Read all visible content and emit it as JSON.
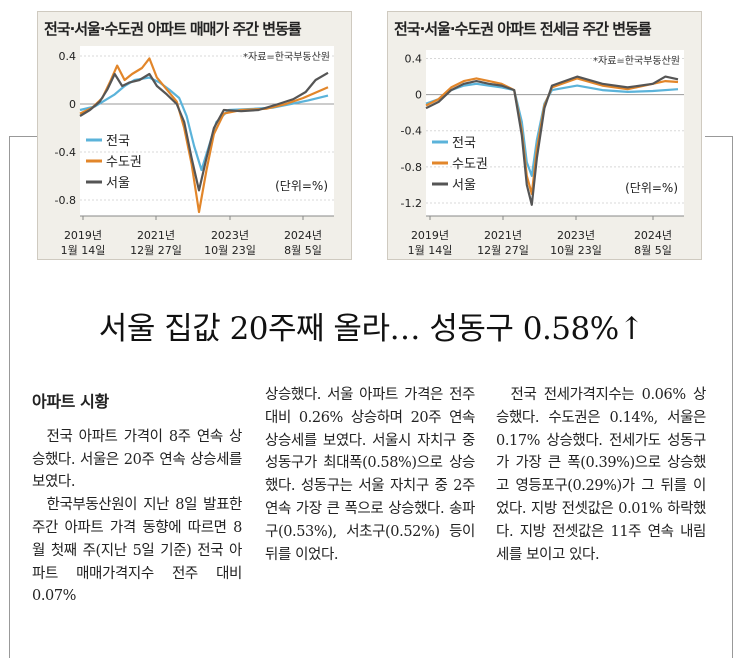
{
  "charts": [
    {
      "title": "전국·서울·수도권 아파트 매매가 주간 변동률",
      "source": "*자료=한국부동산원",
      "unit": "(단위=%)",
      "x_ticks": [
        {
          "year": "2019년",
          "date": "1월 14일"
        },
        {
          "year": "2021년",
          "date": "12월 27일"
        },
        {
          "year": "2023년",
          "date": "10월 23일"
        },
        {
          "year": "2024년",
          "date": "8월 5일"
        }
      ],
      "y_ticks": [
        "0.4",
        "0",
        "-0.4",
        "-0.8"
      ],
      "legend": [
        "전국",
        "수도권",
        "서울"
      ],
      "colors": {
        "nationwide": "#5bb3da",
        "capital": "#e2862a",
        "seoul": "#555555"
      }
    },
    {
      "title": "전국·서울·수도권 아파트 전세금 주간 변동률",
      "source": "*자료=한국부동산원",
      "unit": "(단위=%)",
      "x_ticks": [
        {
          "year": "2019년",
          "date": "1월 14일"
        },
        {
          "year": "2021년",
          "date": "12월 27일"
        },
        {
          "year": "2023년",
          "date": "10월 23일"
        },
        {
          "year": "2024년",
          "date": "8월 5일"
        }
      ],
      "y_ticks": [
        "0.4",
        "0",
        "-0.4",
        "-0.8",
        "-1.2"
      ],
      "legend": [
        "전국",
        "수도권",
        "서울"
      ],
      "colors": {
        "nationwide": "#5bb3da",
        "capital": "#e2862a",
        "seoul": "#555555"
      }
    }
  ],
  "chart_data": [
    {
      "type": "line",
      "ylim": [
        -0.9,
        0.45
      ],
      "series": [
        {
          "name": "전국",
          "points": [
            [
              0,
              -0.05
            ],
            [
              0.06,
              -0.02
            ],
            [
              0.1,
              0.03
            ],
            [
              0.14,
              0.08
            ],
            [
              0.18,
              0.15
            ],
            [
              0.22,
              0.2
            ],
            [
              0.28,
              0.22
            ],
            [
              0.32,
              0.18
            ],
            [
              0.36,
              0.12
            ],
            [
              0.4,
              0.05
            ],
            [
              0.43,
              -0.1
            ],
            [
              0.46,
              -0.35
            ],
            [
              0.49,
              -0.55
            ],
            [
              0.52,
              -0.35
            ],
            [
              0.55,
              -0.15
            ],
            [
              0.6,
              -0.05
            ],
            [
              0.7,
              -0.04
            ],
            [
              0.78,
              -0.03
            ],
            [
              0.85,
              0.0
            ],
            [
              0.92,
              0.03
            ],
            [
              1.0,
              0.07
            ]
          ]
        },
        {
          "name": "수도권",
          "points": [
            [
              0,
              -0.08
            ],
            [
              0.05,
              -0.03
            ],
            [
              0.09,
              0.05
            ],
            [
              0.12,
              0.18
            ],
            [
              0.15,
              0.32
            ],
            [
              0.18,
              0.2
            ],
            [
              0.21,
              0.25
            ],
            [
              0.25,
              0.3
            ],
            [
              0.28,
              0.38
            ],
            [
              0.31,
              0.22
            ],
            [
              0.35,
              0.12
            ],
            [
              0.39,
              0.02
            ],
            [
              0.42,
              -0.2
            ],
            [
              0.45,
              -0.5
            ],
            [
              0.48,
              -0.9
            ],
            [
              0.51,
              -0.55
            ],
            [
              0.54,
              -0.25
            ],
            [
              0.58,
              -0.08
            ],
            [
              0.65,
              -0.05
            ],
            [
              0.75,
              -0.04
            ],
            [
              0.83,
              0.0
            ],
            [
              0.9,
              0.05
            ],
            [
              1.0,
              0.14
            ]
          ]
        },
        {
          "name": "서울",
          "points": [
            [
              0,
              -0.1
            ],
            [
              0.04,
              -0.05
            ],
            [
              0.08,
              0.02
            ],
            [
              0.11,
              0.12
            ],
            [
              0.14,
              0.25
            ],
            [
              0.17,
              0.15
            ],
            [
              0.2,
              0.18
            ],
            [
              0.24,
              0.2
            ],
            [
              0.28,
              0.25
            ],
            [
              0.31,
              0.15
            ],
            [
              0.35,
              0.08
            ],
            [
              0.39,
              0.0
            ],
            [
              0.42,
              -0.15
            ],
            [
              0.45,
              -0.45
            ],
            [
              0.48,
              -0.72
            ],
            [
              0.51,
              -0.45
            ],
            [
              0.54,
              -0.2
            ],
            [
              0.58,
              -0.05
            ],
            [
              0.65,
              -0.06
            ],
            [
              0.72,
              -0.05
            ],
            [
              0.8,
              0.0
            ],
            [
              0.86,
              0.04
            ],
            [
              0.91,
              0.1
            ],
            [
              0.95,
              0.2
            ],
            [
              1.0,
              0.26
            ]
          ]
        }
      ]
    },
    {
      "type": "line",
      "ylim": [
        -1.3,
        0.45
      ],
      "series": [
        {
          "name": "전국",
          "points": [
            [
              0,
              -0.1
            ],
            [
              0.05,
              -0.05
            ],
            [
              0.1,
              0.05
            ],
            [
              0.15,
              0.1
            ],
            [
              0.2,
              0.12
            ],
            [
              0.25,
              0.1
            ],
            [
              0.3,
              0.08
            ],
            [
              0.35,
              0.05
            ],
            [
              0.38,
              -0.3
            ],
            [
              0.4,
              -0.75
            ],
            [
              0.42,
              -0.9
            ],
            [
              0.44,
              -0.5
            ],
            [
              0.47,
              -0.1
            ],
            [
              0.5,
              0.05
            ],
            [
              0.6,
              0.1
            ],
            [
              0.7,
              0.05
            ],
            [
              0.8,
              0.03
            ],
            [
              0.9,
              0.04
            ],
            [
              1.0,
              0.06
            ]
          ]
        },
        {
          "name": "수도권",
          "points": [
            [
              0,
              -0.12
            ],
            [
              0.05,
              -0.05
            ],
            [
              0.1,
              0.08
            ],
            [
              0.15,
              0.15
            ],
            [
              0.2,
              0.18
            ],
            [
              0.25,
              0.15
            ],
            [
              0.3,
              0.12
            ],
            [
              0.35,
              0.05
            ],
            [
              0.38,
              -0.4
            ],
            [
              0.4,
              -0.9
            ],
            [
              0.42,
              -1.1
            ],
            [
              0.44,
              -0.6
            ],
            [
              0.47,
              -0.12
            ],
            [
              0.5,
              0.08
            ],
            [
              0.6,
              0.18
            ],
            [
              0.7,
              0.1
            ],
            [
              0.8,
              0.06
            ],
            [
              0.9,
              0.12
            ],
            [
              0.95,
              0.15
            ],
            [
              1.0,
              0.14
            ]
          ]
        },
        {
          "name": "서울",
          "points": [
            [
              0,
              -0.15
            ],
            [
              0.05,
              -0.08
            ],
            [
              0.1,
              0.05
            ],
            [
              0.15,
              0.12
            ],
            [
              0.2,
              0.15
            ],
            [
              0.25,
              0.12
            ],
            [
              0.3,
              0.1
            ],
            [
              0.35,
              0.05
            ],
            [
              0.38,
              -0.45
            ],
            [
              0.4,
              -1.0
            ],
            [
              0.42,
              -1.22
            ],
            [
              0.44,
              -0.7
            ],
            [
              0.47,
              -0.15
            ],
            [
              0.5,
              0.1
            ],
            [
              0.6,
              0.2
            ],
            [
              0.7,
              0.12
            ],
            [
              0.8,
              0.08
            ],
            [
              0.9,
              0.12
            ],
            [
              0.95,
              0.2
            ],
            [
              1.0,
              0.17
            ]
          ]
        }
      ]
    }
  ],
  "article": {
    "headline": "서울 집값 20주째 올라… 성동구 0.58%↑",
    "section": "아파트 시황",
    "col1": [
      "전국 아파트 가격이 8주 연속 상승했다. 서울은 20주 연속 상승세를 보였다.",
      "한국부동산원이 지난 8일 발표한 주간 아파트 가격 동향에 따르면 8월 첫째 주(지난 5일 기준) 전국 아파트 매매가격지수 전주 대비 0.07%"
    ],
    "col2": "상승했다. 서울 아파트 가격은 전주 대비 0.26% 상승하며 20주 연속 상승세를 보였다. 서울시 자치구 중 성동구가 최대폭(0.58%)으로 상승했다. 성동구는 서울 자치구 중 2주 연속 가장 큰 폭으로 상승했다. 송파구(0.53%), 서초구(0.52%) 등이 뒤를 이었다.",
    "col3": "전국 전세가격지수는 0.06% 상승했다. 수도권은 0.14%, 서울은 0.17% 상승했다. 전세가도 성동구가 가장 큰 폭(0.39%)으로 상승했고 영등포구(0.29%)가 그 뒤를 이었다. 지방 전셋값은 0.01% 하락했다. 지방 전셋값은 11주 연속 내림세를 보이고 있다."
  }
}
